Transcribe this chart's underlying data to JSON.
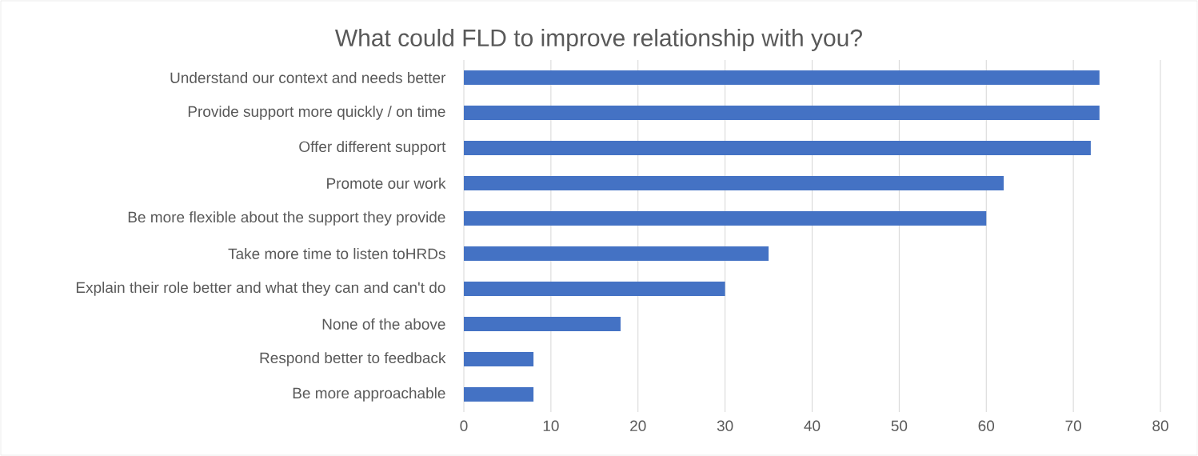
{
  "chart_data": {
    "type": "bar",
    "orientation": "horizontal",
    "title": "What could FLD to improve relationship with you?",
    "categories": [
      "Understand our context and needs better",
      "Provide support more quickly / on time",
      "Offer different support",
      "Promote our work",
      "Be more flexible about the support they provide",
      "Take more time to listen toHRDs",
      "Explain their role better and what they can and can't do",
      "None of the above",
      "Respond better to feedback",
      "Be more approachable"
    ],
    "values": [
      73,
      73,
      72,
      62,
      60,
      35,
      30,
      18,
      8,
      8
    ],
    "color": "#4472c4",
    "xlim": [
      0,
      80
    ],
    "xticks": [
      0,
      10,
      20,
      30,
      40,
      50,
      60,
      70,
      80
    ],
    "grid": "x"
  }
}
